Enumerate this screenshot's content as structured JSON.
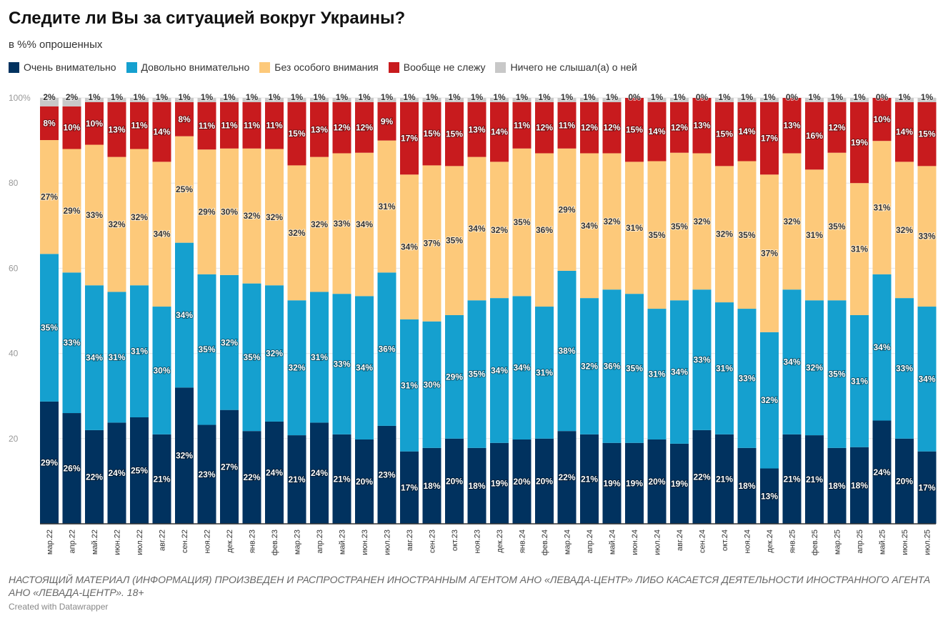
{
  "title": "Следите ли Вы за ситуацией вокруг Украины?",
  "subtitle": "в %% опрошенных",
  "note": "НАСТОЯЩИЙ МАТЕРИАЛ (ИНФОРМАЦИЯ) ПРОИЗВЕДЕН И РАСПРОСТРАНЕН ИНОСТРАННЫМ АГЕНТОМ АНО «ЛЕВАДА-ЦЕНТР» ЛИБО КАСАЕТСЯ ДЕЯТЕЛЬНОСТИ ИНОСТРАННОГО АГЕНТА АНО «ЛЕВАДА-ЦЕНТР». 18+",
  "credit": "Created with Datawrapper",
  "chart_data": {
    "type": "bar",
    "stacked": true,
    "ylim": [
      0,
      100
    ],
    "yticks": [
      "20",
      "40",
      "60",
      "80",
      "100%"
    ],
    "grid": true,
    "legend_placement": "top-left",
    "categories": [
      "мар.22",
      "апр.22",
      "май.22",
      "июн.22",
      "июл.22",
      "авг.22",
      "сен.22",
      "ноя.22",
      "дек.22",
      "янв.23",
      "фев.23",
      "мар.23",
      "апр.23",
      "май.23",
      "июн.23",
      "июл.23",
      "авг.23",
      "сен.23",
      "окт.23",
      "ноя.23",
      "дек.23",
      "янв.24",
      "фев.24",
      "мар.24",
      "апр.24",
      "май.24",
      "июн.24",
      "июл.24",
      "авг.24",
      "сен.24",
      "окт.24",
      "ноя.24",
      "дек.24",
      "янв.25",
      "фев.25",
      "мар.25",
      "апр.25",
      "май.25",
      "июн.25",
      "июл.25"
    ],
    "series": [
      {
        "name": "Очень внимательно",
        "color": "#01325f",
        "label_color": "#ffffff",
        "values": [
          29,
          26,
          22,
          24,
          25,
          21,
          32,
          23,
          27,
          22,
          24,
          21,
          24,
          21,
          20,
          23,
          17,
          18,
          20,
          18,
          19,
          20,
          20,
          22,
          21,
          19,
          19,
          20,
          19,
          22,
          21,
          18,
          13,
          21,
          21,
          18,
          18,
          24,
          20,
          17
        ]
      },
      {
        "name": "Довольно внимательно",
        "color": "#15a0cf",
        "label_color": "#ffffff",
        "values": [
          35,
          33,
          34,
          31,
          31,
          30,
          34,
          35,
          32,
          35,
          32,
          32,
          31,
          33,
          34,
          36,
          31,
          30,
          29,
          35,
          34,
          34,
          31,
          38,
          32,
          36,
          35,
          31,
          34,
          33,
          31,
          33,
          32,
          34,
          32,
          35,
          31,
          34,
          33,
          34
        ]
      },
      {
        "name": "Без особого внимания",
        "color": "#fdc97a",
        "label_color": "#333333",
        "values": [
          27,
          29,
          33,
          32,
          32,
          34,
          25,
          29,
          30,
          32,
          32,
          32,
          32,
          33,
          34,
          31,
          34,
          37,
          35,
          34,
          32,
          35,
          36,
          29,
          34,
          32,
          31,
          35,
          35,
          32,
          32,
          35,
          37,
          32,
          31,
          35,
          31,
          31,
          32,
          33
        ]
      },
      {
        "name": "Вообще не слежу",
        "color": "#c81b1e",
        "label_color": "#ffffff",
        "values": [
          8,
          10,
          10,
          13,
          11,
          14,
          8,
          11,
          11,
          11,
          11,
          15,
          13,
          12,
          12,
          9,
          17,
          15,
          15,
          13,
          14,
          11,
          12,
          11,
          12,
          12,
          15,
          14,
          12,
          13,
          15,
          14,
          17,
          13,
          16,
          12,
          19,
          10,
          14,
          15
        ]
      },
      {
        "name": "Ничего не слышал(а) о ней",
        "color": "#c8c8c8",
        "label_color": "#333333",
        "values": [
          2,
          2,
          1,
          1,
          1,
          1,
          1,
          1,
          1,
          1,
          1,
          1,
          1,
          1,
          1,
          1,
          1,
          1,
          1,
          1,
          1,
          1,
          1,
          1,
          1,
          1,
          0,
          1,
          1,
          0,
          1,
          1,
          1,
          0,
          1,
          1,
          1,
          0,
          1,
          1
        ]
      }
    ]
  }
}
